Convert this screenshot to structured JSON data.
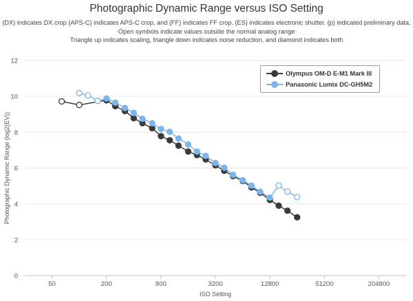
{
  "chart_data": {
    "type": "line",
    "title": "Photographic Dynamic Range versus ISO Setting",
    "subtitle": [
      "(DX) indicates DX crop (APS-C) indicates APS-C crop, and (FF) indicates FF crop. (ES) indicates electronic shutter. (p) indicated preliminary data.",
      "Open symbols indicate values outside the normal analog range",
      "Triangle up indicates scaling, triangle down indicates noise reduction, and diamond indicates both"
    ],
    "xlabel": "ISO Setting",
    "ylabel": "Photographic Dynamic Range (log2(EV))",
    "x_scale": "log2",
    "xlim": [
      25,
      409600
    ],
    "ylim": [
      0,
      12
    ],
    "x_ticks": [
      "50",
      "200",
      "800",
      "3200",
      "12800",
      "51200",
      "204800"
    ],
    "y_ticks": [
      "0",
      "2",
      "4",
      "6",
      "8",
      "10",
      "12"
    ],
    "grid": "horizontal",
    "legend_position": "top-right",
    "series": [
      {
        "name": "Olympus OM-D E-M1 Mark III",
        "color": "#3a3a3a",
        "points": [
          {
            "x": 64,
            "y": 9.72,
            "open": true
          },
          {
            "x": 100,
            "y": 9.52,
            "open": true
          },
          {
            "x": 200,
            "y": 9.78,
            "open": false
          },
          {
            "x": 250,
            "y": 9.45,
            "open": false
          },
          {
            "x": 320,
            "y": 9.18,
            "open": false
          },
          {
            "x": 400,
            "y": 8.78,
            "open": false
          },
          {
            "x": 500,
            "y": 8.5,
            "open": false
          },
          {
            "x": 640,
            "y": 8.22,
            "open": false
          },
          {
            "x": 800,
            "y": 7.78,
            "open": false
          },
          {
            "x": 1000,
            "y": 7.55,
            "open": false
          },
          {
            "x": 1250,
            "y": 7.25,
            "open": false
          },
          {
            "x": 1600,
            "y": 6.92,
            "open": false
          },
          {
            "x": 2000,
            "y": 6.72,
            "open": false
          },
          {
            "x": 2500,
            "y": 6.48,
            "open": false
          },
          {
            "x": 3200,
            "y": 6.15,
            "open": false
          },
          {
            "x": 4000,
            "y": 5.85,
            "open": false
          },
          {
            "x": 5000,
            "y": 5.55,
            "open": false
          },
          {
            "x": 6400,
            "y": 5.28,
            "open": false
          },
          {
            "x": 8000,
            "y": 4.92,
            "open": false
          },
          {
            "x": 10000,
            "y": 4.62,
            "open": false
          },
          {
            "x": 12800,
            "y": 4.22,
            "open": false
          },
          {
            "x": 16000,
            "y": 3.9,
            "open": false
          },
          {
            "x": 20000,
            "y": 3.62,
            "open": false
          },
          {
            "x": 25600,
            "y": 3.25,
            "open": false
          }
        ]
      },
      {
        "name": "Panasonic Lumix DC-GH5M2",
        "color": "#7cb5ec",
        "points": [
          {
            "x": 100,
            "y": 10.18,
            "open": true
          },
          {
            "x": 125,
            "y": 10.05,
            "open": true
          },
          {
            "x": 160,
            "y": 9.75,
            "open": true
          },
          {
            "x": 200,
            "y": 9.88,
            "open": false
          },
          {
            "x": 250,
            "y": 9.65,
            "open": false
          },
          {
            "x": 320,
            "y": 9.35,
            "open": false
          },
          {
            "x": 400,
            "y": 9.08,
            "open": false
          },
          {
            "x": 500,
            "y": 8.75,
            "open": false
          },
          {
            "x": 640,
            "y": 8.5,
            "open": false
          },
          {
            "x": 800,
            "y": 8.18,
            "open": false
          },
          {
            "x": 1000,
            "y": 8.02,
            "open": false
          },
          {
            "x": 1250,
            "y": 7.65,
            "open": false
          },
          {
            "x": 1600,
            "y": 7.32,
            "open": false
          },
          {
            "x": 2000,
            "y": 6.92,
            "open": false
          },
          {
            "x": 2500,
            "y": 6.68,
            "open": false
          },
          {
            "x": 3200,
            "y": 6.28,
            "open": false
          },
          {
            "x": 4000,
            "y": 6.02,
            "open": false
          },
          {
            "x": 5000,
            "y": 5.62,
            "open": false
          },
          {
            "x": 6400,
            "y": 5.32,
            "open": false
          },
          {
            "x": 8000,
            "y": 5.02,
            "open": false
          },
          {
            "x": 10000,
            "y": 4.68,
            "open": false
          },
          {
            "x": 12800,
            "y": 4.35,
            "open": false
          },
          {
            "x": 16000,
            "y": 5.02,
            "open": true
          },
          {
            "x": 20000,
            "y": 4.68,
            "open": true
          },
          {
            "x": 25600,
            "y": 4.38,
            "open": true
          }
        ]
      }
    ]
  }
}
